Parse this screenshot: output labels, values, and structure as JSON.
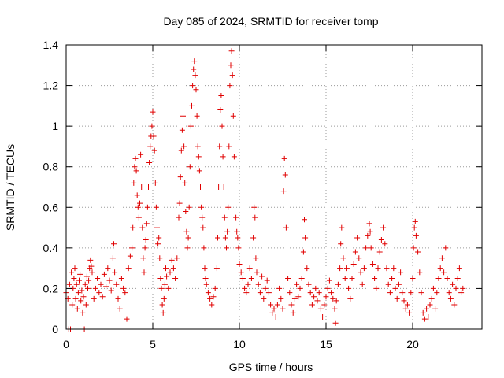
{
  "chart_data": {
    "type": "scatter",
    "title": "Day 085 of 2024, SRMTID for receiver tomp",
    "xlabel": "GPS time / hours",
    "ylabel": "SRMTID / TECUs",
    "xlim": [
      0,
      24
    ],
    "ylim": [
      0,
      1.4
    ],
    "xticks": [
      0,
      5,
      10,
      15,
      20
    ],
    "yticks": [
      0,
      0.2,
      0.4,
      0.6,
      0.8,
      1,
      1.2,
      1.4
    ],
    "xtick_labels": [
      "0",
      "5",
      "10",
      "15",
      "20"
    ],
    "ytick_labels": [
      "0",
      "0.2",
      "0.4",
      "0.6",
      "0.8",
      "1",
      "1.2",
      "1.4"
    ],
    "grid": true,
    "marker": "+",
    "color": "#e00000",
    "series": [
      {
        "name": "SRMTID",
        "points": [
          [
            0.0,
            0.18
          ],
          [
            0.1,
            0.15
          ],
          [
            0.15,
            0.0
          ],
          [
            0.2,
            0.22
          ],
          [
            0.25,
            0.0
          ],
          [
            0.3,
            0.28
          ],
          [
            0.35,
            0.12
          ],
          [
            0.4,
            0.2
          ],
          [
            0.45,
            0.25
          ],
          [
            0.5,
            0.3
          ],
          [
            0.55,
            0.15
          ],
          [
            0.6,
            0.22
          ],
          [
            0.65,
            0.1
          ],
          [
            0.7,
            0.18
          ],
          [
            0.75,
            0.24
          ],
          [
            0.8,
            0.27
          ],
          [
            0.85,
            0.14
          ],
          [
            0.9,
            0.19
          ],
          [
            0.95,
            0.08
          ],
          [
            1.0,
            0.16
          ],
          [
            1.05,
            0.0
          ],
          [
            1.1,
            0.22
          ],
          [
            1.15,
            0.12
          ],
          [
            1.2,
            0.26
          ],
          [
            1.25,
            0.2
          ],
          [
            1.3,
            0.24
          ],
          [
            1.35,
            0.3
          ],
          [
            1.4,
            0.34
          ],
          [
            1.45,
            0.31
          ],
          [
            1.5,
            0.28
          ],
          [
            1.6,
            0.15
          ],
          [
            1.7,
            0.2
          ],
          [
            1.8,
            0.25
          ],
          [
            1.9,
            0.18
          ],
          [
            2.0,
            0.22
          ],
          [
            2.1,
            0.16
          ],
          [
            2.2,
            0.27
          ],
          [
            2.3,
            0.21
          ],
          [
            2.4,
            0.3
          ],
          [
            2.5,
            0.24
          ],
          [
            2.6,
            0.19
          ],
          [
            2.7,
            0.35
          ],
          [
            2.75,
            0.42
          ],
          [
            2.8,
            0.28
          ],
          [
            2.9,
            0.22
          ],
          [
            3.0,
            0.15
          ],
          [
            3.1,
            0.1
          ],
          [
            3.2,
            0.25
          ],
          [
            3.3,
            0.2
          ],
          [
            3.4,
            0.18
          ],
          [
            3.5,
            0.05
          ],
          [
            3.6,
            0.3
          ],
          [
            3.7,
            0.36
          ],
          [
            3.8,
            0.4
          ],
          [
            3.85,
            0.5
          ],
          [
            3.9,
            0.72
          ],
          [
            3.95,
            0.8
          ],
          [
            4.0,
            0.84
          ],
          [
            4.05,
            0.78
          ],
          [
            4.1,
            0.66
          ],
          [
            4.15,
            0.6
          ],
          [
            4.2,
            0.55
          ],
          [
            4.25,
            0.62
          ],
          [
            4.3,
            0.86
          ],
          [
            4.35,
            0.7
          ],
          [
            4.4,
            0.5
          ],
          [
            4.45,
            0.35
          ],
          [
            4.5,
            0.28
          ],
          [
            4.55,
            0.4
          ],
          [
            4.6,
            0.44
          ],
          [
            4.65,
            0.52
          ],
          [
            4.7,
            0.6
          ],
          [
            4.75,
            0.7
          ],
          [
            4.8,
            0.82
          ],
          [
            4.85,
            0.9
          ],
          [
            4.9,
            0.95
          ],
          [
            4.95,
            1.0
          ],
          [
            5.0,
            1.07
          ],
          [
            5.05,
            0.95
          ],
          [
            5.1,
            0.88
          ],
          [
            5.15,
            0.72
          ],
          [
            5.2,
            0.6
          ],
          [
            5.25,
            0.5
          ],
          [
            5.3,
            0.42
          ],
          [
            5.35,
            0.45
          ],
          [
            5.4,
            0.35
          ],
          [
            5.45,
            0.25
          ],
          [
            5.5,
            0.2
          ],
          [
            5.55,
            0.12
          ],
          [
            5.6,
            0.08
          ],
          [
            5.65,
            0.15
          ],
          [
            5.7,
            0.22
          ],
          [
            5.75,
            0.3
          ],
          [
            5.8,
            0.26
          ],
          [
            5.9,
            0.2
          ],
          [
            6.0,
            0.28
          ],
          [
            6.1,
            0.34
          ],
          [
            6.2,
            0.3
          ],
          [
            6.3,
            0.25
          ],
          [
            6.4,
            0.35
          ],
          [
            6.5,
            0.55
          ],
          [
            6.55,
            0.62
          ],
          [
            6.6,
            0.75
          ],
          [
            6.65,
            0.88
          ],
          [
            6.7,
            0.98
          ],
          [
            6.75,
            1.05
          ],
          [
            6.8,
            0.9
          ],
          [
            6.85,
            0.72
          ],
          [
            6.9,
            0.58
          ],
          [
            6.95,
            0.48
          ],
          [
            7.0,
            0.4
          ],
          [
            7.05,
            0.45
          ],
          [
            7.1,
            0.6
          ],
          [
            7.15,
            0.8
          ],
          [
            7.2,
            1.0
          ],
          [
            7.25,
            1.1
          ],
          [
            7.3,
            1.2
          ],
          [
            7.35,
            1.28
          ],
          [
            7.4,
            1.32
          ],
          [
            7.45,
            1.25
          ],
          [
            7.5,
            1.18
          ],
          [
            7.55,
            1.05
          ],
          [
            7.6,
            0.9
          ],
          [
            7.65,
            0.85
          ],
          [
            7.7,
            0.78
          ],
          [
            7.75,
            0.7
          ],
          [
            7.8,
            0.6
          ],
          [
            7.85,
            0.55
          ],
          [
            7.9,
            0.5
          ],
          [
            7.95,
            0.4
          ],
          [
            8.0,
            0.3
          ],
          [
            8.05,
            0.25
          ],
          [
            8.1,
            0.22
          ],
          [
            8.2,
            0.18
          ],
          [
            8.3,
            0.15
          ],
          [
            8.4,
            0.12
          ],
          [
            8.5,
            0.16
          ],
          [
            8.6,
            0.2
          ],
          [
            8.7,
            0.3
          ],
          [
            8.75,
            0.45
          ],
          [
            8.8,
            0.7
          ],
          [
            8.85,
            0.9
          ],
          [
            8.9,
            1.08
          ],
          [
            8.95,
            1.15
          ],
          [
            9.0,
            1.0
          ],
          [
            9.05,
            0.85
          ],
          [
            9.1,
            0.7
          ],
          [
            9.15,
            0.55
          ],
          [
            9.2,
            0.45
          ],
          [
            9.25,
            0.4
          ],
          [
            9.3,
            0.48
          ],
          [
            9.35,
            0.6
          ],
          [
            9.4,
            0.9
          ],
          [
            9.45,
            1.2
          ],
          [
            9.5,
            1.3
          ],
          [
            9.55,
            1.37
          ],
          [
            9.6,
            1.25
          ],
          [
            9.65,
            1.05
          ],
          [
            9.7,
            0.85
          ],
          [
            9.75,
            0.7
          ],
          [
            9.8,
            0.55
          ],
          [
            9.85,
            0.48
          ],
          [
            9.9,
            0.45
          ],
          [
            9.95,
            0.4
          ],
          [
            10.0,
            0.32
          ],
          [
            10.1,
            0.28
          ],
          [
            10.2,
            0.25
          ],
          [
            10.3,
            0.2
          ],
          [
            10.4,
            0.18
          ],
          [
            10.5,
            0.22
          ],
          [
            10.6,
            0.3
          ],
          [
            10.7,
            0.25
          ],
          [
            10.8,
            0.45
          ],
          [
            10.85,
            0.6
          ],
          [
            10.9,
            0.55
          ],
          [
            10.95,
            0.35
          ],
          [
            11.0,
            0.28
          ],
          [
            11.1,
            0.22
          ],
          [
            11.2,
            0.18
          ],
          [
            11.3,
            0.26
          ],
          [
            11.4,
            0.15
          ],
          [
            11.5,
            0.2
          ],
          [
            11.6,
            0.24
          ],
          [
            11.7,
            0.18
          ],
          [
            11.8,
            0.12
          ],
          [
            11.9,
            0.08
          ],
          [
            12.0,
            0.1
          ],
          [
            12.1,
            0.06
          ],
          [
            12.2,
            0.12
          ],
          [
            12.3,
            0.2
          ],
          [
            12.4,
            0.15
          ],
          [
            12.5,
            0.1
          ],
          [
            12.55,
            0.68
          ],
          [
            12.6,
            0.84
          ],
          [
            12.65,
            0.76
          ],
          [
            12.7,
            0.5
          ],
          [
            12.8,
            0.25
          ],
          [
            12.9,
            0.18
          ],
          [
            13.0,
            0.12
          ],
          [
            13.1,
            0.08
          ],
          [
            13.2,
            0.15
          ],
          [
            13.3,
            0.22
          ],
          [
            13.4,
            0.16
          ],
          [
            13.5,
            0.2
          ],
          [
            13.6,
            0.25
          ],
          [
            13.7,
            0.38
          ],
          [
            13.75,
            0.54
          ],
          [
            13.8,
            0.45
          ],
          [
            13.9,
            0.3
          ],
          [
            14.0,
            0.22
          ],
          [
            14.1,
            0.18
          ],
          [
            14.2,
            0.12
          ],
          [
            14.3,
            0.16
          ],
          [
            14.4,
            0.2
          ],
          [
            14.5,
            0.14
          ],
          [
            14.6,
            0.18
          ],
          [
            14.7,
            0.1
          ],
          [
            14.8,
            0.06
          ],
          [
            14.9,
            0.12
          ],
          [
            15.0,
            0.16
          ],
          [
            15.1,
            0.2
          ],
          [
            15.2,
            0.24
          ],
          [
            15.3,
            0.18
          ],
          [
            15.4,
            0.15
          ],
          [
            15.5,
            0.1
          ],
          [
            15.55,
            0.03
          ],
          [
            15.6,
            0.14
          ],
          [
            15.7,
            0.22
          ],
          [
            15.8,
            0.3
          ],
          [
            15.85,
            0.42
          ],
          [
            15.9,
            0.5
          ],
          [
            16.0,
            0.35
          ],
          [
            16.1,
            0.25
          ],
          [
            16.2,
            0.3
          ],
          [
            16.3,
            0.2
          ],
          [
            16.4,
            0.15
          ],
          [
            16.5,
            0.25
          ],
          [
            16.6,
            0.32
          ],
          [
            16.7,
            0.38
          ],
          [
            16.8,
            0.45
          ],
          [
            16.9,
            0.35
          ],
          [
            17.0,
            0.28
          ],
          [
            17.1,
            0.22
          ],
          [
            17.2,
            0.3
          ],
          [
            17.3,
            0.4
          ],
          [
            17.4,
            0.46
          ],
          [
            17.5,
            0.52
          ],
          [
            17.55,
            0.48
          ],
          [
            17.6,
            0.4
          ],
          [
            17.7,
            0.32
          ],
          [
            17.8,
            0.25
          ],
          [
            17.9,
            0.2
          ],
          [
            18.0,
            0.3
          ],
          [
            18.1,
            0.38
          ],
          [
            18.2,
            0.44
          ],
          [
            18.3,
            0.5
          ],
          [
            18.4,
            0.42
          ],
          [
            18.5,
            0.3
          ],
          [
            18.6,
            0.22
          ],
          [
            18.7,
            0.18
          ],
          [
            18.8,
            0.25
          ],
          [
            18.9,
            0.3
          ],
          [
            19.0,
            0.2
          ],
          [
            19.1,
            0.15
          ],
          [
            19.2,
            0.22
          ],
          [
            19.3,
            0.28
          ],
          [
            19.4,
            0.18
          ],
          [
            19.5,
            0.14
          ],
          [
            19.6,
            0.1
          ],
          [
            19.7,
            0.12
          ],
          [
            19.8,
            0.08
          ],
          [
            19.9,
            0.18
          ],
          [
            20.0,
            0.25
          ],
          [
            20.05,
            0.4
          ],
          [
            20.1,
            0.5
          ],
          [
            20.15,
            0.53
          ],
          [
            20.2,
            0.46
          ],
          [
            20.3,
            0.38
          ],
          [
            20.4,
            0.28
          ],
          [
            20.5,
            0.18
          ],
          [
            20.6,
            0.08
          ],
          [
            20.7,
            0.05
          ],
          [
            20.8,
            0.1
          ],
          [
            20.9,
            0.06
          ],
          [
            21.0,
            0.12
          ],
          [
            21.1,
            0.15
          ],
          [
            21.2,
            0.2
          ],
          [
            21.3,
            0.1
          ],
          [
            21.4,
            0.18
          ],
          [
            21.5,
            0.25
          ],
          [
            21.6,
            0.3
          ],
          [
            21.7,
            0.35
          ],
          [
            21.8,
            0.28
          ],
          [
            21.9,
            0.4
          ],
          [
            22.0,
            0.25
          ],
          [
            22.1,
            0.18
          ],
          [
            22.2,
            0.15
          ],
          [
            22.3,
            0.22
          ],
          [
            22.4,
            0.12
          ],
          [
            22.5,
            0.2
          ],
          [
            22.6,
            0.25
          ],
          [
            22.7,
            0.3
          ],
          [
            22.8,
            0.18
          ],
          [
            22.9,
            0.2
          ]
        ]
      }
    ]
  }
}
